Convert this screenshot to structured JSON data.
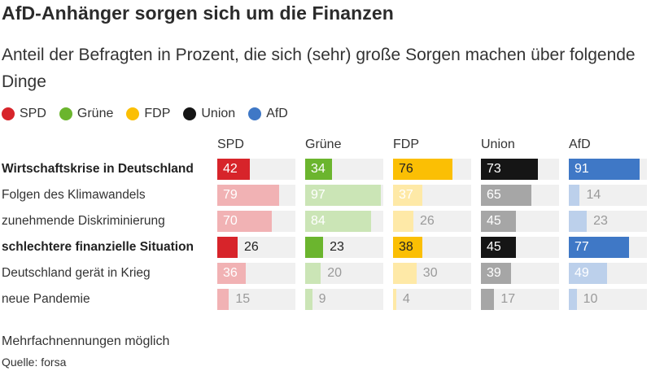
{
  "title": "AfD-Anhänger sorgen sich um die Finanzen",
  "subtitle": "Anteil der Befragten in Prozent, die sich (sehr) große Sorgen machen über folgende Dinge",
  "legend": [
    {
      "name": "SPD",
      "color": "#d7242a"
    },
    {
      "name": "Grüne",
      "color": "#6bb52e"
    },
    {
      "name": "FDP",
      "color": "#fbbf04"
    },
    {
      "name": "Union",
      "color": "#151515"
    },
    {
      "name": "AfD",
      "color": "#3f78c6"
    }
  ],
  "footnote": "Mehrfachnennungen möglich",
  "source": "Quelle: forsa",
  "chart_data": {
    "type": "bar",
    "title": "AfD-Anhänger sorgen sich um die Finanzen",
    "subtitle": "Anteil der Befragten in Prozent, die sich (sehr) große Sorgen machen über folgende Dinge",
    "xlim": [
      0,
      100
    ],
    "categories": [
      "Wirtschaftskrise in Deutschland",
      "Folgen des Klimawandels",
      "zunehmende Diskriminierung",
      "schlechtere finanzielle Situation",
      "Deutschland gerät in Krieg",
      "neue Pandemie"
    ],
    "highlighted_categories": [
      0,
      3
    ],
    "series": [
      {
        "name": "SPD",
        "color": "#d7242a",
        "values": [
          42,
          79,
          70,
          26,
          36,
          15
        ]
      },
      {
        "name": "Grüne",
        "color": "#6bb52e",
        "values": [
          34,
          97,
          84,
          23,
          20,
          9
        ]
      },
      {
        "name": "FDP",
        "color": "#fbbf04",
        "values": [
          76,
          37,
          26,
          38,
          30,
          4
        ]
      },
      {
        "name": "Union",
        "color": "#151515",
        "values": [
          73,
          65,
          45,
          45,
          39,
          17
        ]
      },
      {
        "name": "AfD",
        "color": "#3f78c6",
        "values": [
          91,
          14,
          23,
          77,
          49,
          10
        ]
      }
    ]
  }
}
